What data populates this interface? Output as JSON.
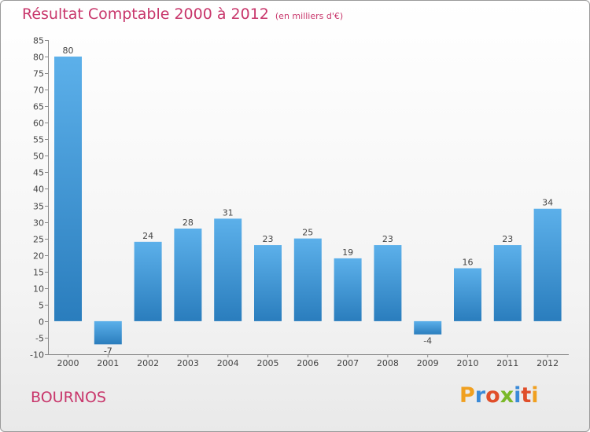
{
  "title": {
    "main": "Résultat Comptable 2000 à 2012",
    "unit": "(en milliers d'€)"
  },
  "commune": "BOURNOS",
  "logo": {
    "text": "Proxiti"
  },
  "colors": {
    "accent": "#c8366b",
    "bar_top": "#5cb0ea",
    "bar_bottom": "#2a7dbd"
  },
  "chart_data": {
    "type": "bar",
    "title": "Résultat Comptable 2000 à 2012",
    "ylabel": "en milliers d'€",
    "xlabel": "",
    "categories": [
      "2000",
      "2001",
      "2002",
      "2003",
      "2004",
      "2005",
      "2006",
      "2007",
      "2008",
      "2009",
      "2010",
      "2011",
      "2012"
    ],
    "values": [
      80,
      -7,
      24,
      28,
      31,
      23,
      25,
      19,
      23,
      -4,
      16,
      23,
      34
    ],
    "ylim": [
      -10,
      85
    ],
    "yticks": [
      -10,
      -5,
      0,
      5,
      10,
      15,
      20,
      25,
      30,
      35,
      40,
      45,
      50,
      55,
      60,
      65,
      70,
      75,
      80,
      85
    ],
    "grid": false
  }
}
